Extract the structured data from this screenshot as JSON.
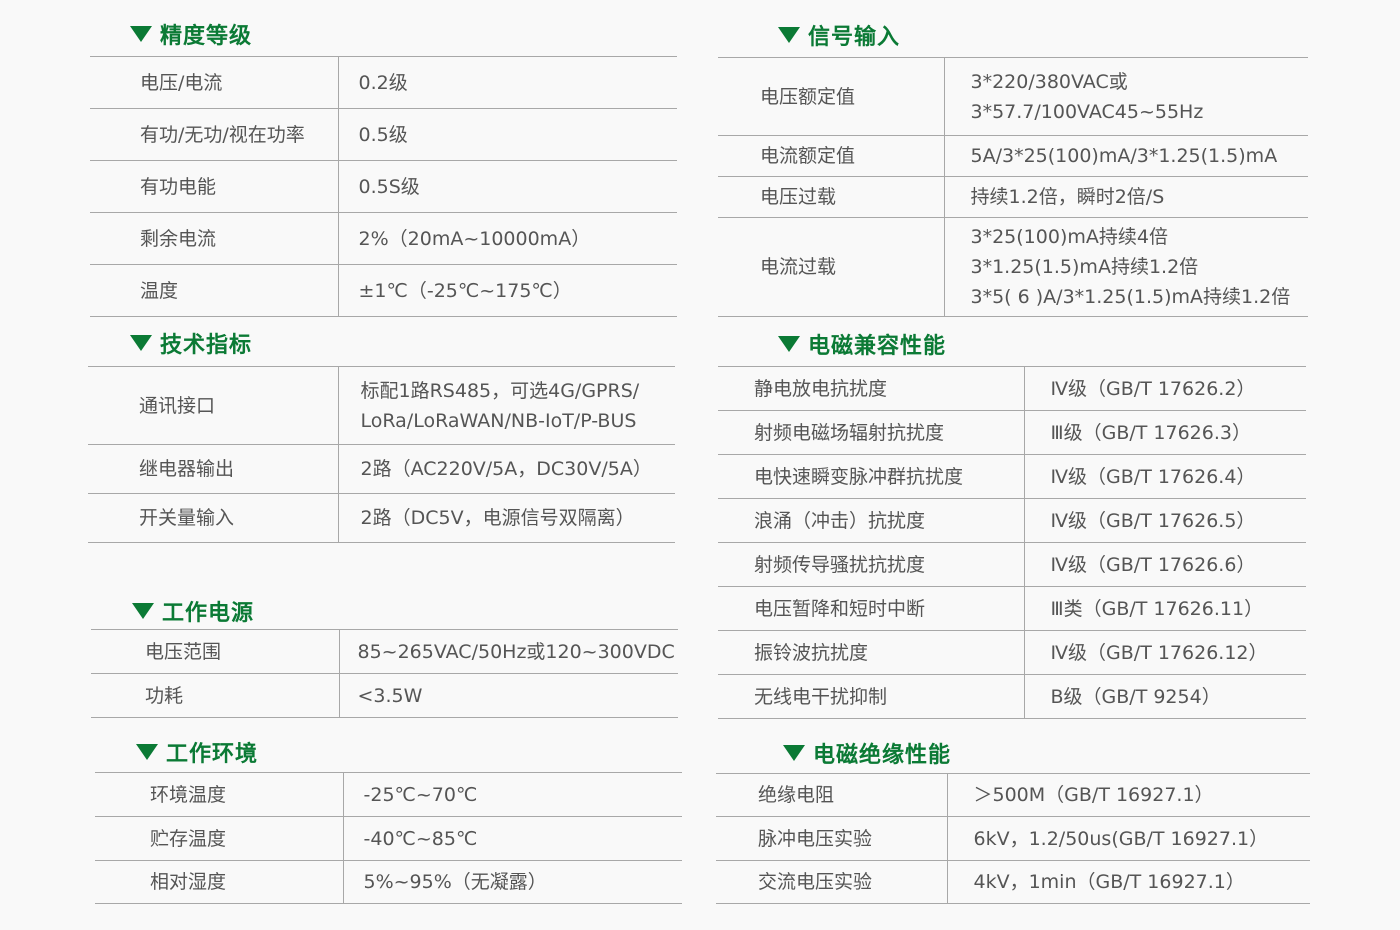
{
  "accent_color": "#0b7a35",
  "sections": [
    {
      "title": "精度等级",
      "rows": [
        {
          "label": "电压/电流",
          "value": [
            "0.2级"
          ]
        },
        {
          "label": "有功/无功/视在功率",
          "value": [
            "0.5级"
          ]
        },
        {
          "label": "有功电能",
          "value": [
            "0.5S级"
          ]
        },
        {
          "label": "剩余电流",
          "value": [
            "2%（20mA~10000mA）"
          ]
        },
        {
          "label": "温度",
          "value": [
            "±1℃（-25℃~175℃）"
          ]
        }
      ]
    },
    {
      "title": "技术指标",
      "rows": [
        {
          "label": "通讯接口",
          "value": [
            "标配1路RS485，可选4G/GPRS/",
            "LoRa/LoRaWAN/NB-IoT/P-BUS"
          ]
        },
        {
          "label": "继电器输出",
          "value": [
            "2路（AC220V/5A，DC30V/5A）"
          ]
        },
        {
          "label": "开关量输入",
          "value": [
            "2路（DC5V，电源信号双隔离）"
          ]
        }
      ]
    },
    {
      "title": "工作电源",
      "rows": [
        {
          "label": "电压范围",
          "value": [
            "85~265VAC/50Hz或120~300VDC"
          ]
        },
        {
          "label": "功耗",
          "value": [
            "<3.5W"
          ]
        }
      ]
    },
    {
      "title": "工作环境",
      "rows": [
        {
          "label": "环境温度",
          "value": [
            "-25℃~70℃"
          ]
        },
        {
          "label": "贮存温度",
          "value": [
            "-40℃~85℃"
          ]
        },
        {
          "label": "相对湿度",
          "value": [
            "5%~95%（无凝露）"
          ]
        }
      ]
    },
    {
      "title": "信号输入",
      "rows": [
        {
          "label": "电压额定值",
          "value": [
            "3*220/380VAC或",
            "3*57.7/100VAC45~55Hz"
          ]
        },
        {
          "label": "电流额定值",
          "value": [
            "5A/3*25(100)mA/3*1.25(1.5)mA"
          ]
        },
        {
          "label": "电压过载",
          "value": [
            "持续1.2倍，瞬时2倍/S"
          ]
        },
        {
          "label": "电流过载",
          "value": [
            "3*25(100)mA持续4倍",
            "3*1.25(1.5)mA持续1.2倍",
            "3*5( 6 )A/3*1.25(1.5)mA持续1.2倍"
          ]
        }
      ]
    },
    {
      "title": "电磁兼容性能",
      "rows": [
        {
          "label": "静电放电抗扰度",
          "value": [
            "Ⅳ级（GB/T 17626.2）"
          ]
        },
        {
          "label": "射频电磁场辐射抗扰度",
          "value": [
            "Ⅲ级（GB/T 17626.3）"
          ]
        },
        {
          "label": "电快速瞬变脉冲群抗扰度",
          "value": [
            "Ⅳ级（GB/T 17626.4）"
          ]
        },
        {
          "label": "浪涌（冲击）抗扰度",
          "value": [
            "Ⅳ级（GB/T 17626.5）"
          ]
        },
        {
          "label": "射频传导骚扰抗扰度",
          "value": [
            "Ⅳ级（GB/T 17626.6）"
          ]
        },
        {
          "label": "电压暂降和短时中断",
          "value": [
            "Ⅲ类（GB/T 17626.11）"
          ]
        },
        {
          "label": "振铃波抗扰度",
          "value": [
            "Ⅳ级（GB/T 17626.12）"
          ]
        },
        {
          "label": "无线电干扰抑制",
          "value": [
            "B级（GB/T 9254）"
          ]
        }
      ]
    },
    {
      "title": "电磁绝缘性能",
      "rows": [
        {
          "label": "绝缘电阻",
          "value": [
            "＞500M（GB/T 16927.1）"
          ]
        },
        {
          "label": "脉冲电压实验",
          "value": [
            "6kV，1.2/50us(GB/T 16927.1）"
          ]
        },
        {
          "label": "交流电压实验",
          "value": [
            "4kV，1min（GB/T 16927.1）"
          ]
        }
      ]
    }
  ]
}
